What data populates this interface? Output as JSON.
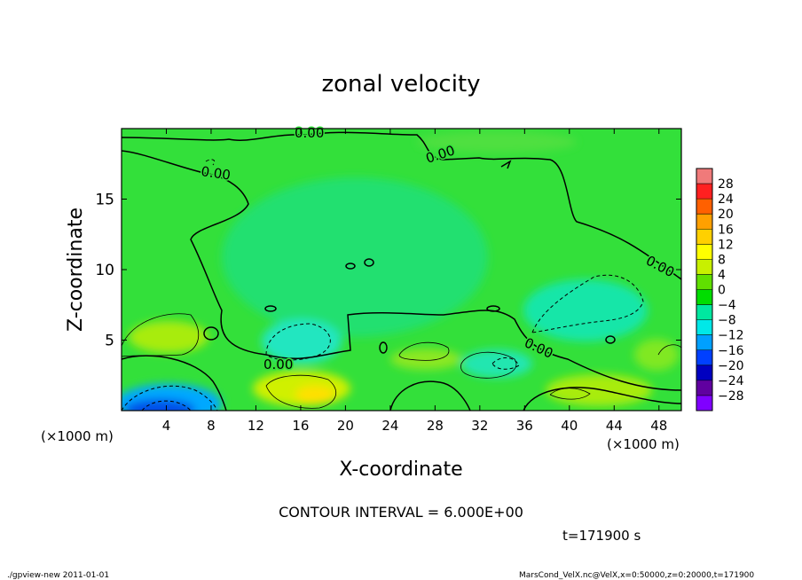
{
  "chart_data": {
    "type": "heatmap",
    "title": "zonal velocity",
    "xlabel": "X-coordinate",
    "ylabel": "Z-coordinate",
    "x_unit_label": "(×1000 m)",
    "y_unit_label": "(×1000 m)",
    "xlim": [
      0,
      50
    ],
    "ylim": [
      0,
      20
    ],
    "x_ticks": [
      "4",
      "8",
      "12",
      "16",
      "20",
      "24",
      "28",
      "32",
      "36",
      "40",
      "44",
      "48"
    ],
    "x_tick_values": [
      4,
      8,
      12,
      16,
      20,
      24,
      28,
      32,
      36,
      40,
      44,
      48
    ],
    "y_ticks": [
      "5",
      "10",
      "15"
    ],
    "y_tick_values": [
      5,
      10,
      15
    ],
    "colorbar_labels": [
      "28",
      "24",
      "20",
      "16",
      "12",
      "8",
      "4",
      "0",
      "−4",
      "−8",
      "−12",
      "−16",
      "−20",
      "−24",
      "−28"
    ],
    "colorbar_colors": [
      "#f07a7a",
      "#ff2020",
      "#ff6000",
      "#ffa000",
      "#ffd000",
      "#ffff00",
      "#c8f000",
      "#60e000",
      "#00dd00",
      "#00e8a0",
      "#00e8e8",
      "#00a0ff",
      "#0040ff",
      "#0000c0",
      "#6000a0",
      "#8000ff"
    ],
    "contour_labels": [
      "0.00",
      "0.00",
      "0.00",
      "0.00",
      "0.00",
      "0.00"
    ],
    "contour_interval_text": "CONTOUR INTERVAL = 6.000E+00",
    "time_text": "t=171900 s",
    "features": [
      {
        "kind": "min",
        "x": 4.5,
        "z": 0.6,
        "value": -20
      },
      {
        "kind": "min",
        "x": 15.5,
        "z": 5.0,
        "value": -10
      },
      {
        "kind": "min",
        "x": 40.5,
        "z": 7.0,
        "value": -8
      },
      {
        "kind": "min",
        "x": 34.0,
        "z": 9.5,
        "value": -6
      },
      {
        "kind": "min",
        "x": 33.0,
        "z": 3.0,
        "value": -7
      },
      {
        "kind": "max",
        "x": 17.5,
        "z": 1.5,
        "value": 10
      },
      {
        "kind": "max",
        "x": 4.0,
        "z": 4.8,
        "value": 6
      },
      {
        "kind": "max",
        "x": 27.0,
        "z": 3.5,
        "value": 5
      },
      {
        "kind": "max",
        "x": 42.5,
        "z": 1.5,
        "value": 7
      },
      {
        "kind": "max",
        "x": 47.0,
        "z": 5.0,
        "value": 4
      }
    ]
  },
  "footer": {
    "left": "./gpview-new   2011-01-01",
    "right": "MarsCond_VelX.nc@VelX,x=0:50000,z=0:20000,t=171900"
  }
}
